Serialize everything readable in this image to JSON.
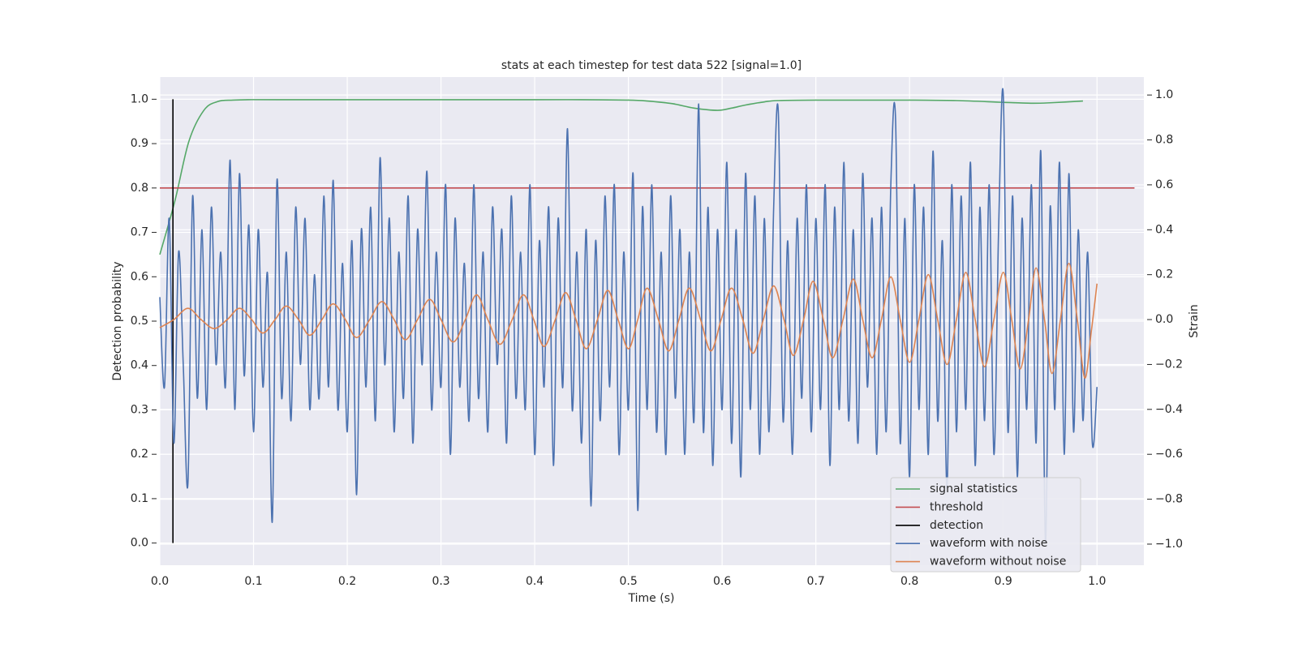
{
  "chart_data": {
    "type": "line",
    "title": "stats at each timestep for test data 522 [signal=1.0]",
    "x_label": "Time (s)",
    "y_label": "Detection probability",
    "y2_label": "Strain",
    "xlim": [
      0,
      1.05
    ],
    "xticks": [
      {
        "value": 0,
        "label": "0.0"
      },
      0.1,
      0.2,
      0.3,
      0.4,
      0.5,
      0.6,
      0.7,
      0.8,
      0.9,
      {
        "value": 1,
        "label": "1.0"
      }
    ],
    "ylim": [
      -0.05,
      1.05
    ],
    "yticks": [
      {
        "value": 0,
        "label": "0.0"
      },
      0.1,
      0.2,
      0.3,
      0.4,
      0.5,
      0.6,
      0.7,
      0.8,
      0.9,
      {
        "value": 1,
        "label": "1.0"
      }
    ],
    "y2lim": [
      -1.094,
      1.08
    ],
    "y2ticks": [
      {
        "value": -1,
        "label": "−1.0"
      },
      {
        "value": -0.8,
        "label": "−0.8"
      },
      {
        "value": -0.6,
        "label": "−0.6"
      },
      {
        "value": -0.4,
        "label": "−0.4"
      },
      {
        "value": -0.2,
        "label": "−0.2"
      },
      {
        "value": 0,
        "label": "0.0"
      },
      0.2,
      0.4,
      0.6,
      0.8,
      {
        "value": 1,
        "label": "1.0"
      }
    ],
    "grid": true,
    "legend": "lower right",
    "series": [
      {
        "name": "signal statistics",
        "color": "#55a868",
        "x": [
          0,
          0.016,
          0.031,
          0.047,
          0.062,
          0.078,
          0.094,
          0.125,
          0.2,
          0.3,
          0.4,
          0.45,
          0.5,
          0.52,
          0.547,
          0.57,
          0.595,
          0.61,
          0.625,
          0.645,
          0.66,
          0.7,
          0.8,
          0.85,
          0.9,
          0.93,
          0.95,
          0.985
        ],
        "values": [
          0.65,
          0.77,
          0.905,
          0.975,
          0.995,
          0.998,
          0.999,
          0.999,
          0.999,
          0.999,
          0.999,
          0.999,
          0.998,
          0.996,
          0.99,
          0.98,
          0.975,
          0.98,
          0.987,
          0.994,
          0.997,
          0.998,
          0.998,
          0.997,
          0.993,
          0.991,
          0.992,
          0.996
        ]
      },
      {
        "name": "threshold",
        "color": "#c44e52",
        "x": [
          0,
          1.04
        ],
        "values": [
          0.8,
          0.8
        ]
      },
      {
        "name": "detection",
        "color": "#000000",
        "x": [
          0.014,
          0.014
        ],
        "values": [
          0,
          1
        ]
      },
      {
        "name": "waveform with noise",
        "color": "#4c72b0",
        "axis": "y2",
        "x": [
          0,
          0.005,
          0.01,
          0.015,
          0.02,
          0.025,
          0.03,
          0.035,
          0.04,
          0.045,
          0.05,
          0.055,
          0.06,
          0.065,
          0.07,
          0.075,
          0.08,
          0.085,
          0.09,
          0.095,
          0.1,
          0.105,
          0.11,
          0.115,
          0.12,
          0.125,
          0.13,
          0.135,
          0.14,
          0.145,
          0.15,
          0.155,
          0.16,
          0.165,
          0.17,
          0.175,
          0.18,
          0.185,
          0.19,
          0.195,
          0.2,
          0.205,
          0.21,
          0.215,
          0.22,
          0.225,
          0.23,
          0.235,
          0.24,
          0.245,
          0.25,
          0.255,
          0.26,
          0.265,
          0.27,
          0.275,
          0.28,
          0.285,
          0.29,
          0.295,
          0.3,
          0.305,
          0.31,
          0.315,
          0.32,
          0.325,
          0.33,
          0.335,
          0.34,
          0.345,
          0.35,
          0.355,
          0.36,
          0.365,
          0.37,
          0.375,
          0.38,
          0.385,
          0.39,
          0.395,
          0.4,
          0.405,
          0.41,
          0.415,
          0.42,
          0.425,
          0.43,
          0.435,
          0.44,
          0.445,
          0.45,
          0.455,
          0.46,
          0.465,
          0.47,
          0.475,
          0.48,
          0.485,
          0.49,
          0.495,
          0.5,
          0.505,
          0.51,
          0.515,
          0.52,
          0.525,
          0.53,
          0.535,
          0.54,
          0.545,
          0.55,
          0.555,
          0.56,
          0.565,
          0.57,
          0.575,
          0.58,
          0.585,
          0.59,
          0.595,
          0.6,
          0.605,
          0.61,
          0.615,
          0.62,
          0.625,
          0.63,
          0.635,
          0.64,
          0.645,
          0.65,
          0.655,
          0.66,
          0.665,
          0.67,
          0.675,
          0.68,
          0.685,
          0.69,
          0.695,
          0.7,
          0.705,
          0.71,
          0.715,
          0.72,
          0.725,
          0.73,
          0.735,
          0.74,
          0.745,
          0.75,
          0.755,
          0.76,
          0.765,
          0.77,
          0.775,
          0.78,
          0.785,
          0.79,
          0.795,
          0.8,
          0.805,
          0.81,
          0.815,
          0.82,
          0.825,
          0.83,
          0.835,
          0.84,
          0.845,
          0.85,
          0.855,
          0.86,
          0.865,
          0.87,
          0.875,
          0.88,
          0.885,
          0.89,
          0.895,
          0.9,
          0.905,
          0.91,
          0.915,
          0.92,
          0.925,
          0.93,
          0.935,
          0.94,
          0.945,
          0.95,
          0.955,
          0.96,
          0.965,
          0.97,
          0.975,
          0.98,
          0.985,
          0.99,
          0.995,
          1
        ],
        "values": [
          0.1,
          -0.3,
          0.45,
          -0.55,
          0.3,
          -0.2,
          -0.73,
          0.55,
          -0.35,
          0.4,
          -0.4,
          0.5,
          -0.2,
          0.3,
          -0.3,
          0.71,
          -0.4,
          0.65,
          -0.25,
          0.42,
          -0.5,
          0.4,
          -0.3,
          0.2,
          -0.9,
          0.62,
          -0.35,
          0.3,
          -0.45,
          0.5,
          -0.2,
          0.45,
          -0.4,
          0.2,
          -0.35,
          0.55,
          -0.3,
          0.62,
          -0.4,
          0.25,
          -0.5,
          0.35,
          -0.78,
          0.4,
          -0.3,
          0.5,
          -0.45,
          0.72,
          -0.2,
          0.45,
          -0.5,
          0.3,
          -0.35,
          0.55,
          -0.55,
          0.4,
          -0.2,
          0.66,
          -0.4,
          0.3,
          -0.3,
          0.6,
          -0.6,
          0.45,
          -0.3,
          0.25,
          -0.45,
          0.6,
          -0.35,
          0.3,
          -0.5,
          0.5,
          -0.2,
          0.4,
          -0.55,
          0.55,
          -0.35,
          0.3,
          -0.4,
          0.6,
          -0.6,
          0.35,
          -0.3,
          0.5,
          -0.65,
          0.45,
          -0.3,
          0.85,
          -0.4,
          0.3,
          -0.55,
          0.4,
          -0.83,
          0.35,
          -0.45,
          0.55,
          -0.3,
          0.6,
          -0.6,
          0.3,
          -0.4,
          0.65,
          -0.85,
          0.5,
          -0.4,
          0.6,
          -0.5,
          0.3,
          -0.6,
          0.55,
          -0.35,
          0.4,
          -0.6,
          0.3,
          -0.45,
          0.96,
          -0.5,
          0.5,
          -0.65,
          0.4,
          -0.4,
          0.7,
          -0.55,
          0.4,
          -0.7,
          0.65,
          -0.4,
          0.55,
          -0.6,
          0.45,
          -0.5,
          0.5,
          0.92,
          -0.45,
          0.35,
          -0.6,
          0.45,
          -0.35,
          0.6,
          -0.5,
          0.45,
          -0.4,
          0.6,
          -0.65,
          0.5,
          -0.4,
          0.7,
          -0.45,
          0.4,
          -0.55,
          0.65,
          -0.3,
          0.45,
          -0.6,
          0.5,
          -0.5,
          0.6,
          0.9,
          -0.55,
          0.45,
          -0.7,
          0.6,
          -0.4,
          0.5,
          -0.6,
          0.75,
          -0.45,
          0.35,
          -0.75,
          0.6,
          -0.5,
          0.55,
          -0.4,
          0.7,
          -0.65,
          0.5,
          -0.45,
          0.6,
          -0.6,
          0.4,
          1.0,
          -0.5,
          0.55,
          -0.7,
          0.45,
          -0.4,
          0.6,
          -0.55,
          0.75,
          -0.99,
          0.5,
          -0.4,
          0.7,
          -0.6,
          0.65,
          -0.5,
          0.4,
          -0.45,
          0.3,
          -0.55,
          -0.3
        ]
      },
      {
        "name": "waveform without noise",
        "color": "#dd8452",
        "axis": "y2",
        "x": [
          0,
          0.015,
          0.03,
          0.044,
          0.058,
          0.072,
          0.085,
          0.098,
          0.11,
          0.123,
          0.135,
          0.148,
          0.16,
          0.173,
          0.185,
          0.198,
          0.21,
          0.224,
          0.237,
          0.25,
          0.262,
          0.275,
          0.288,
          0.3,
          0.313,
          0.326,
          0.338,
          0.35,
          0.363,
          0.376,
          0.388,
          0.399,
          0.41,
          0.422,
          0.433,
          0.444,
          0.455,
          0.467,
          0.478,
          0.489,
          0.5,
          0.51,
          0.52,
          0.532,
          0.543,
          0.554,
          0.565,
          0.577,
          0.588,
          0.599,
          0.61,
          0.622,
          0.633,
          0.644,
          0.655,
          0.666,
          0.676,
          0.687,
          0.697,
          0.708,
          0.718,
          0.729,
          0.74,
          0.75,
          0.76,
          0.77,
          0.78,
          0.79,
          0.8,
          0.81,
          0.82,
          0.83,
          0.84,
          0.85,
          0.86,
          0.87,
          0.88,
          0.89,
          0.9,
          0.909,
          0.918,
          0.927,
          0.935,
          0.944,
          0.952,
          0.961,
          0.97,
          0.979,
          0.987,
          0.994,
          1
        ],
        "values": [
          -0.036,
          0,
          0.05,
          0,
          -0.04,
          0,
          0.05,
          0,
          -0.06,
          0,
          0.06,
          0,
          -0.07,
          0,
          0.07,
          0,
          -0.08,
          0,
          0.08,
          0,
          -0.09,
          0,
          0.09,
          0,
          -0.1,
          0,
          0.11,
          0,
          -0.11,
          0,
          0.11,
          0,
          -0.12,
          0,
          0.12,
          0,
          -0.13,
          0,
          0.13,
          0,
          -0.13,
          0,
          0.14,
          0,
          -0.14,
          0,
          0.14,
          0,
          -0.14,
          0,
          0.14,
          0,
          -0.15,
          0,
          0.15,
          0,
          -0.16,
          0,
          0.17,
          0,
          -0.17,
          0,
          0.18,
          0,
          -0.17,
          0,
          0.19,
          0,
          -0.19,
          0,
          0.2,
          0,
          -0.2,
          0,
          0.21,
          0,
          -0.21,
          0,
          0.21,
          0,
          -0.22,
          0,
          0.23,
          0,
          -0.24,
          0,
          0.25,
          0,
          -0.26,
          -0.05,
          0.16
        ]
      }
    ]
  }
}
